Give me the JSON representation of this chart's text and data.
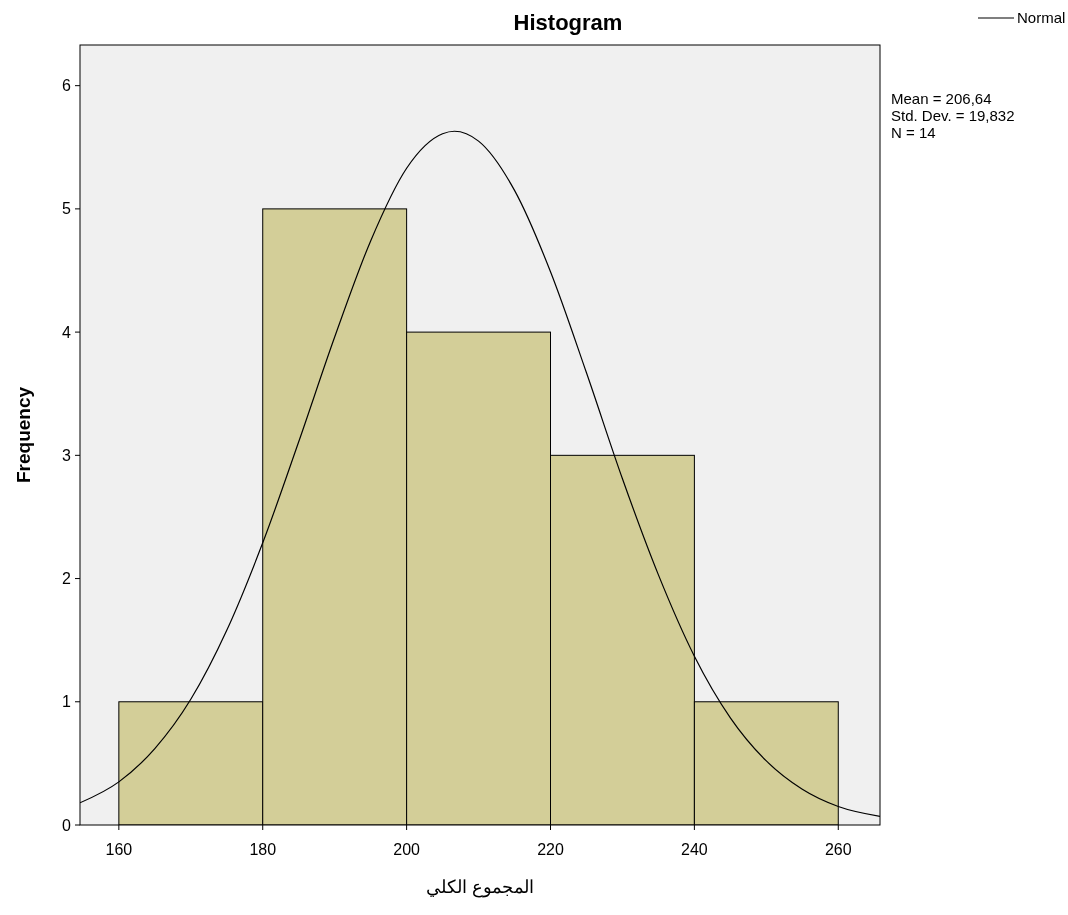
{
  "chart_data": {
    "type": "histogram",
    "title": "Histogram",
    "xlabel": "المجموع الكلي",
    "ylabel": "Frequency",
    "bins": [
      160,
      180,
      200,
      220,
      240,
      260
    ],
    "series": [
      {
        "color": "#d3ce98",
        "values": [
          1,
          5,
          4,
          3,
          1
        ]
      },
      {
        "type": "line",
        "name": "Normal",
        "color": "#000000",
        "x": [
          154.6,
          160,
          165,
          170,
          175,
          180,
          185,
          190,
          195,
          200,
          205,
          206.64,
          210,
          215,
          220,
          225,
          230,
          235,
          240,
          245,
          250,
          255,
          260,
          265.8
        ],
        "values": [
          0.18,
          0.35,
          0.62,
          1.02,
          1.58,
          2.29,
          3.11,
          3.96,
          4.74,
          5.33,
          5.61,
          5.63,
          5.55,
          5.15,
          4.49,
          3.67,
          2.81,
          2.03,
          1.37,
          0.87,
          0.52,
          0.29,
          0.15,
          0.07
        ]
      }
    ],
    "xlim": [
      154.6,
      265.8
    ],
    "xticks": [
      160,
      180,
      200,
      220,
      240,
      260
    ],
    "ylim": [
      0,
      6.33
    ],
    "yticks": [
      0,
      1,
      2,
      3,
      4,
      5,
      6
    ],
    "legend": "top right",
    "grid": false,
    "marker": "none",
    "line_style": "solid",
    "annotations": [
      "Mean = 206,64",
      "Std. Dev. = 19,832",
      "N = 14"
    ]
  }
}
